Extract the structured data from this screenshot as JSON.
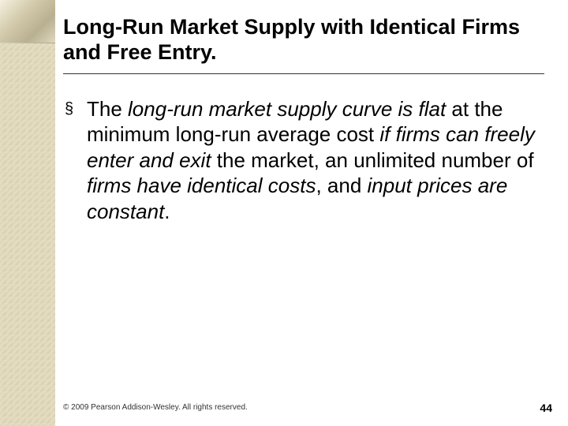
{
  "slide": {
    "title": "Long-Run Market Supply with Identical Firms and Free Entry.",
    "bullet_marker": "§",
    "body_parts": {
      "p1": "The ",
      "p2_italic": "long-run market supply curve is flat",
      "p3": " at the minimum long-run average cost ",
      "p4_italic": "if firms can freely enter and exit",
      "p5": " the market, an unlimited number of ",
      "p6_italic": "firms have identical costs",
      "p7": ", and ",
      "p8_italic": "input prices are constant",
      "p9": "."
    },
    "footer": "© 2009 Pearson Addison-Wesley. All rights reserved.",
    "page_number": "44"
  },
  "style": {
    "background_color": "#ffffff",
    "sidebar_color": "#e0d8bc",
    "title_color": "#000000",
    "body_color": "#000000",
    "title_fontsize": 27,
    "body_fontsize": 26,
    "footer_fontsize": 10,
    "pagenum_fontsize": 14
  }
}
